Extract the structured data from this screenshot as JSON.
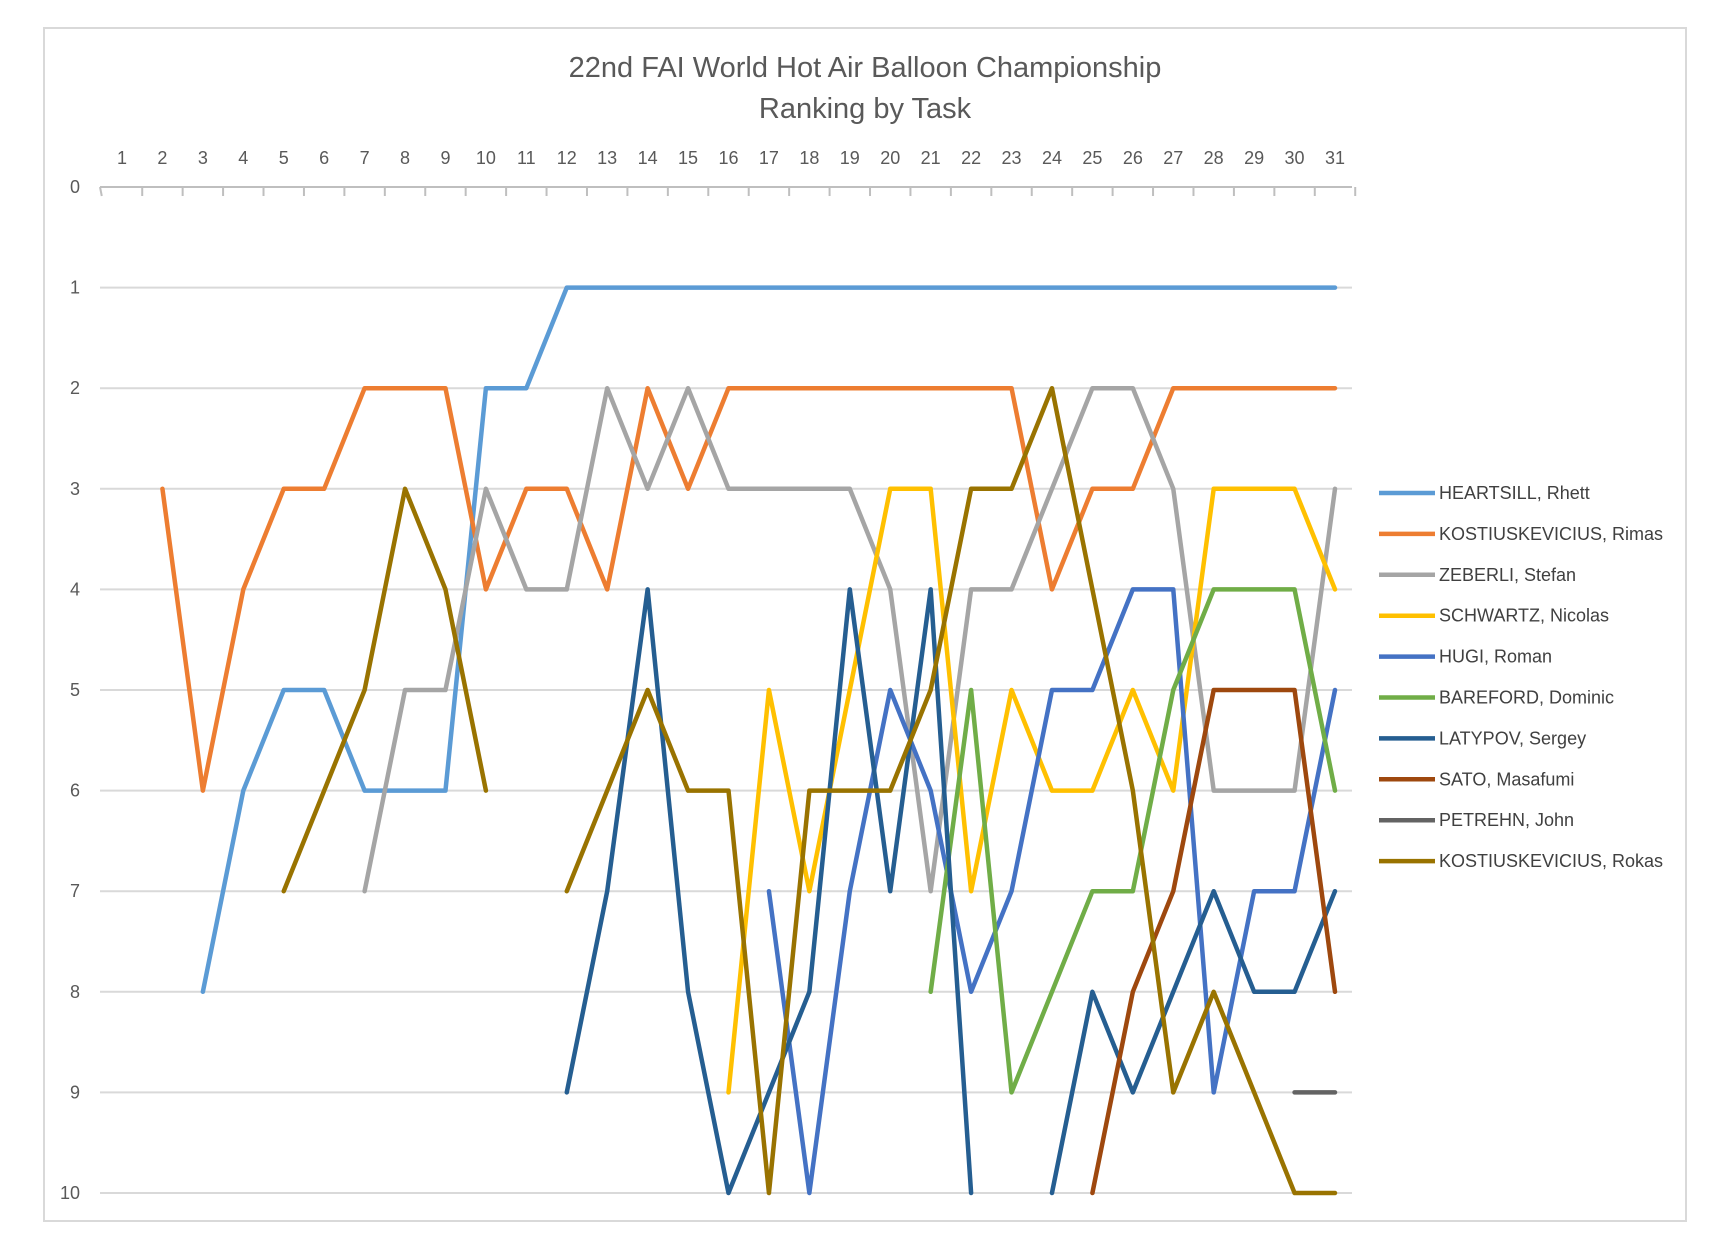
{
  "chart_data": {
    "type": "line",
    "title": "22nd FAI World Hot Air Balloon Championship",
    "subtitle": "Ranking by Task",
    "x": [
      1,
      2,
      3,
      4,
      5,
      6,
      7,
      8,
      9,
      10,
      11,
      12,
      13,
      14,
      15,
      16,
      17,
      18,
      19,
      20,
      21,
      22,
      23,
      24,
      25,
      26,
      27,
      28,
      29,
      30,
      31
    ],
    "xlim": [
      1,
      31
    ],
    "ylim": [
      0,
      10
    ],
    "y_inverted": true,
    "y_ticks": [
      0,
      1,
      2,
      3,
      4,
      5,
      6,
      7,
      8,
      9,
      10
    ],
    "x_axis_position": "top",
    "grid": "horizontal",
    "legend_position": "right",
    "series": [
      {
        "name": "HEARTSILL, Rhett",
        "color": "#5B9BD5",
        "values": [
          null,
          null,
          8,
          6,
          5,
          5,
          6,
          6,
          6,
          2,
          2,
          1,
          1,
          1,
          1,
          1,
          1,
          1,
          1,
          1,
          1,
          1,
          1,
          1,
          1,
          1,
          1,
          1,
          1,
          1,
          1
        ]
      },
      {
        "name": "KOSTIUSKEVICIUS, Rimas",
        "color": "#ED7D31",
        "values": [
          null,
          3,
          6,
          4,
          3,
          3,
          2,
          2,
          2,
          4,
          3,
          3,
          4,
          2,
          3,
          2,
          2,
          2,
          2,
          2,
          2,
          2,
          2,
          4,
          3,
          3,
          2,
          2,
          2,
          2,
          2
        ]
      },
      {
        "name": "ZEBERLI, Stefan",
        "color": "#A5A5A5",
        "values": [
          null,
          null,
          null,
          null,
          null,
          null,
          7,
          5,
          5,
          3,
          4,
          4,
          2,
          3,
          2,
          3,
          3,
          3,
          3,
          4,
          7,
          4,
          4,
          3,
          2,
          2,
          3,
          6,
          6,
          6,
          3
        ]
      },
      {
        "name": "SCHWARTZ, Nicolas",
        "color": "#FFC000",
        "values": [
          null,
          null,
          null,
          null,
          null,
          null,
          null,
          null,
          null,
          null,
          null,
          null,
          null,
          null,
          null,
          9,
          5,
          7,
          5,
          3,
          3,
          7,
          5,
          6,
          6,
          5,
          6,
          3,
          3,
          3,
          4
        ]
      },
      {
        "name": "HUGI, Roman",
        "color": "#4472C4",
        "values": [
          null,
          null,
          null,
          null,
          null,
          null,
          null,
          null,
          null,
          null,
          null,
          null,
          null,
          null,
          null,
          null,
          7,
          10,
          7,
          5,
          6,
          8,
          7,
          5,
          5,
          4,
          4,
          9,
          7,
          7,
          5
        ]
      },
      {
        "name": "BAREFORD, Dominic",
        "color": "#70AD47",
        "values": [
          null,
          null,
          null,
          null,
          null,
          null,
          null,
          null,
          null,
          null,
          null,
          null,
          null,
          null,
          null,
          null,
          null,
          null,
          null,
          null,
          8,
          5,
          9,
          8,
          7,
          7,
          5,
          4,
          4,
          4,
          6
        ]
      },
      {
        "name": "LATYPOV, Sergey",
        "color": "#255E91",
        "values": [
          null,
          null,
          null,
          null,
          null,
          null,
          null,
          null,
          null,
          null,
          null,
          9,
          7,
          4,
          8,
          10,
          9,
          8,
          4,
          7,
          4,
          10,
          null,
          10,
          8,
          9,
          8,
          7,
          8,
          8,
          7
        ]
      },
      {
        "name": "SATO, Masafumi",
        "color": "#9E480E",
        "values": [
          null,
          null,
          null,
          null,
          null,
          null,
          null,
          null,
          null,
          null,
          null,
          null,
          null,
          null,
          null,
          null,
          null,
          null,
          null,
          null,
          null,
          null,
          null,
          null,
          10,
          8,
          7,
          5,
          5,
          5,
          8
        ]
      },
      {
        "name": "PETREHN, John",
        "color": "#636363",
        "values": [
          null,
          null,
          null,
          null,
          null,
          null,
          null,
          null,
          null,
          null,
          null,
          null,
          null,
          null,
          null,
          null,
          null,
          null,
          null,
          null,
          null,
          null,
          null,
          null,
          null,
          null,
          null,
          null,
          null,
          9,
          9
        ]
      },
      {
        "name": "KOSTIUSKEVICIUS, Rokas",
        "color": "#997300",
        "values": [
          null,
          null,
          null,
          null,
          7,
          6,
          5,
          3,
          4,
          6,
          null,
          7,
          6,
          5,
          6,
          6,
          10,
          6,
          6,
          6,
          5,
          3,
          3,
          2,
          4,
          6,
          9,
          8,
          9,
          10,
          10
        ]
      }
    ]
  }
}
